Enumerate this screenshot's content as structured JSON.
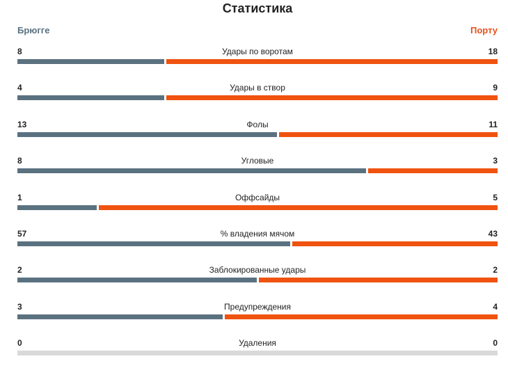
{
  "header": {
    "title": "Статистика",
    "home_team": "Брюгге",
    "away_team": "Порту"
  },
  "stats": [
    {
      "label": "Удары по воротам",
      "home": "8",
      "away": "18"
    },
    {
      "label": "Удары в створ",
      "home": "4",
      "away": "9"
    },
    {
      "label": "Фолы",
      "home": "13",
      "away": "11"
    },
    {
      "label": "Угловые",
      "home": "8",
      "away": "3"
    },
    {
      "label": "Оффсайды",
      "home": "1",
      "away": "5"
    },
    {
      "label": "% владения мячом",
      "home": "57",
      "away": "43"
    },
    {
      "label": "Заблокированные удары",
      "home": "2",
      "away": "2"
    },
    {
      "label": "Предупреждения",
      "home": "3",
      "away": "4"
    },
    {
      "label": "Удаления",
      "home": "0",
      "away": "0"
    }
  ],
  "colors": {
    "home": "#5a7180",
    "away": "#f0520f",
    "empty": "#d9d9d9"
  }
}
